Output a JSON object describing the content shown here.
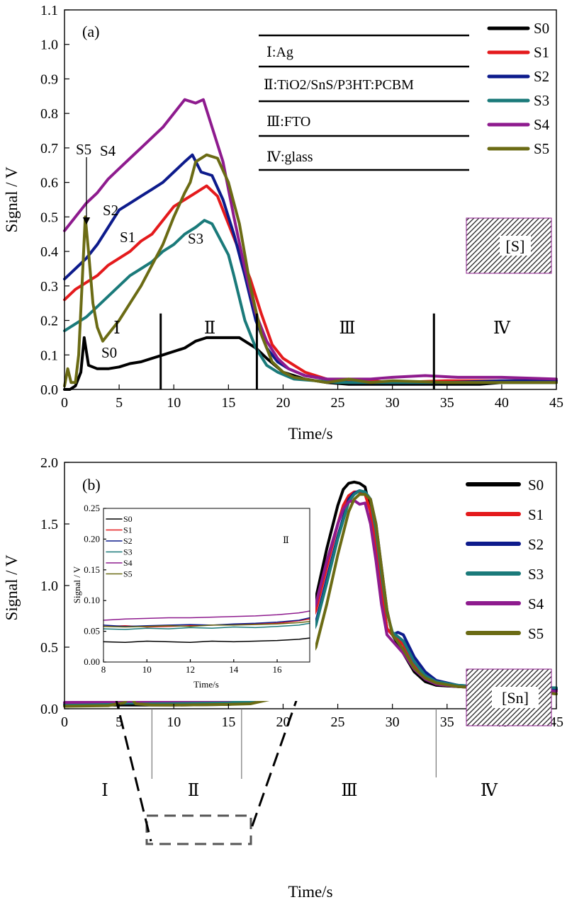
{
  "colors": {
    "S0": "#000000",
    "S1": "#e41a1c",
    "S2": "#0d1b8c",
    "S3": "#1a7a7a",
    "S4": "#8e1b8e",
    "S5": "#6b6b14"
  },
  "chart_data": [
    {
      "type": "line",
      "panel_label": "(a)",
      "xlabel": "Time/s",
      "ylabel": "Signal / V",
      "xlim": [
        0,
        45
      ],
      "ylim": [
        0,
        1.1
      ],
      "x_ticks": [
        "0",
        "5",
        "10",
        "15",
        "20",
        "25",
        "30",
        "35",
        "40",
        "45"
      ],
      "y_ticks": [
        "0.0",
        "0.1",
        "0.2",
        "0.3",
        "0.4",
        "0.5",
        "0.6",
        "0.7",
        "0.8",
        "0.9",
        "1.0",
        "1.1"
      ],
      "legend": [
        "S0",
        "S1",
        "S2",
        "S3",
        "S4",
        "S5"
      ],
      "legend_position": "top-right",
      "layers": [
        "Ⅰ:Ag",
        "Ⅱ:TiO2/SnS/P3HT:PCBM",
        "Ⅲ:FTO",
        "Ⅳ:glass"
      ],
      "element_box": "[S]",
      "region_labels": [
        "Ⅰ",
        "Ⅱ",
        "Ⅲ",
        "Ⅳ"
      ],
      "region_boundaries": [
        8.8,
        17.6,
        33.8
      ],
      "curve_labels": [
        "S5",
        "S4",
        "S2",
        "S1",
        "S3",
        "S0"
      ],
      "series": [
        {
          "name": "S0",
          "x": [
            0,
            0.5,
            1.0,
            1.5,
            1.8,
            2.2,
            3,
            4,
            5,
            6,
            7,
            8,
            9,
            10,
            11,
            12,
            13,
            14,
            15,
            16,
            16.5,
            17.5,
            18.5,
            20,
            22,
            24,
            26,
            28,
            30,
            32,
            35,
            38,
            40,
            45
          ],
          "y": [
            0.0,
            0.0,
            0.01,
            0.05,
            0.15,
            0.07,
            0.06,
            0.06,
            0.065,
            0.075,
            0.08,
            0.09,
            0.1,
            0.11,
            0.12,
            0.14,
            0.15,
            0.15,
            0.15,
            0.15,
            0.14,
            0.12,
            0.09,
            0.05,
            0.03,
            0.02,
            0.015,
            0.015,
            0.015,
            0.015,
            0.015,
            0.015,
            0.02,
            0.02
          ]
        },
        {
          "name": "S1",
          "x": [
            0,
            1,
            2,
            3,
            4,
            5,
            6,
            7,
            8,
            9,
            10,
            11,
            12,
            13,
            14,
            15,
            16,
            17,
            18,
            19,
            20,
            21,
            22,
            24,
            26,
            28,
            30,
            35,
            40,
            45
          ],
          "y": [
            0.26,
            0.29,
            0.31,
            0.33,
            0.36,
            0.38,
            0.4,
            0.43,
            0.45,
            0.49,
            0.53,
            0.55,
            0.57,
            0.59,
            0.56,
            0.48,
            0.4,
            0.32,
            0.22,
            0.13,
            0.09,
            0.07,
            0.05,
            0.03,
            0.025,
            0.025,
            0.02,
            0.025,
            0.025,
            0.025
          ]
        },
        {
          "name": "S2",
          "x": [
            0,
            1,
            2,
            3,
            4,
            5,
            6,
            7,
            8,
            9,
            10,
            11,
            11.7,
            12.5,
            13.5,
            14.5,
            15.5,
            16.5,
            17.5,
            18.5,
            19.5,
            20.5,
            22,
            24,
            26,
            28,
            30,
            35,
            40,
            45
          ],
          "y": [
            0.32,
            0.35,
            0.38,
            0.42,
            0.47,
            0.52,
            0.54,
            0.56,
            0.58,
            0.6,
            0.63,
            0.66,
            0.68,
            0.63,
            0.62,
            0.55,
            0.45,
            0.33,
            0.2,
            0.12,
            0.08,
            0.06,
            0.04,
            0.03,
            0.02,
            0.02,
            0.02,
            0.02,
            0.025,
            0.025
          ]
        },
        {
          "name": "S3",
          "x": [
            0,
            1,
            2,
            3,
            4,
            5,
            6,
            7,
            8,
            9,
            10,
            11,
            12,
            12.8,
            13.5,
            14,
            15,
            15.5,
            16.5,
            17.5,
            18.5,
            19.5,
            21,
            23,
            25,
            28,
            30,
            35,
            40,
            45
          ],
          "y": [
            0.17,
            0.19,
            0.21,
            0.24,
            0.27,
            0.3,
            0.33,
            0.35,
            0.37,
            0.4,
            0.42,
            0.45,
            0.47,
            0.49,
            0.48,
            0.45,
            0.39,
            0.33,
            0.2,
            0.12,
            0.07,
            0.05,
            0.03,
            0.025,
            0.02,
            0.02,
            0.02,
            0.02,
            0.02,
            0.02
          ]
        },
        {
          "name": "S4",
          "x": [
            0,
            1,
            2,
            3,
            4,
            5,
            6,
            7,
            8,
            9,
            10,
            11,
            12,
            12.7,
            13.5,
            14.5,
            15.5,
            16.5,
            17.5,
            18.5,
            19.5,
            20.5,
            22,
            24,
            26,
            28,
            30,
            33,
            36,
            40,
            45
          ],
          "y": [
            0.46,
            0.5,
            0.54,
            0.57,
            0.61,
            0.64,
            0.67,
            0.7,
            0.73,
            0.76,
            0.8,
            0.84,
            0.83,
            0.84,
            0.76,
            0.66,
            0.5,
            0.35,
            0.22,
            0.14,
            0.09,
            0.06,
            0.04,
            0.03,
            0.03,
            0.03,
            0.035,
            0.04,
            0.035,
            0.035,
            0.03
          ]
        },
        {
          "name": "S5",
          "x": [
            0,
            0.3,
            0.6,
            1,
            1.3,
            1.6,
            1.9,
            2.2,
            2.6,
            3,
            3.5,
            4,
            5,
            6,
            7,
            8,
            9,
            10,
            11,
            11.5,
            12,
            13,
            14,
            15,
            16,
            17,
            18,
            19,
            20,
            21,
            22,
            24,
            26,
            28,
            30,
            35,
            40,
            45
          ],
          "y": [
            0.01,
            0.06,
            0.02,
            0.02,
            0.1,
            0.3,
            0.5,
            0.4,
            0.25,
            0.18,
            0.14,
            0.16,
            0.2,
            0.25,
            0.3,
            0.36,
            0.42,
            0.5,
            0.57,
            0.6,
            0.66,
            0.68,
            0.67,
            0.6,
            0.48,
            0.3,
            0.16,
            0.08,
            0.05,
            0.035,
            0.03,
            0.02,
            0.03,
            0.02,
            0.025,
            0.02,
            0.02,
            0.02
          ]
        }
      ]
    },
    {
      "type": "line",
      "panel_label": "(b)",
      "xlabel": "Time/s",
      "ylabel": "Signal / V",
      "xlim": [
        0,
        45
      ],
      "ylim": [
        0,
        2.0
      ],
      "x_ticks": [
        "0",
        "5",
        "10",
        "15",
        "20",
        "25",
        "30",
        "35",
        "40",
        "45"
      ],
      "y_ticks": [
        "0.0",
        "0.5",
        "1.0",
        "1.5",
        "2.0"
      ],
      "legend": [
        "S0",
        "S1",
        "S2",
        "S3",
        "S4",
        "S5"
      ],
      "legend_position": "top-right",
      "element_box": "[Sn]",
      "region_labels": [
        "Ⅰ",
        "Ⅱ",
        "Ⅲ",
        "Ⅳ"
      ],
      "region_boundaries": [
        8,
        16.2,
        34
      ],
      "series": [
        {
          "name": "S0",
          "x": [
            0,
            5,
            10,
            15,
            17,
            19,
            21,
            23,
            24,
            25,
            25.5,
            26,
            26.5,
            27,
            27.5,
            28,
            28.5,
            29,
            29.5,
            30,
            31,
            32,
            33,
            34,
            36,
            38,
            40,
            42,
            44,
            45
          ],
          "y": [
            0.03,
            0.03,
            0.03,
            0.035,
            0.05,
            0.15,
            0.4,
            0.9,
            1.3,
            1.65,
            1.78,
            1.83,
            1.84,
            1.83,
            1.8,
            1.6,
            1.3,
            0.95,
            0.65,
            0.6,
            0.45,
            0.3,
            0.22,
            0.19,
            0.18,
            0.17,
            0.17,
            0.17,
            0.16,
            0.16
          ]
        },
        {
          "name": "S1",
          "x": [
            0,
            5,
            10,
            15,
            17,
            19,
            21,
            23,
            24,
            25,
            25.5,
            26,
            26.5,
            27,
            27.5,
            28,
            28.5,
            29,
            29.5,
            30,
            31,
            32,
            33,
            34,
            36,
            38,
            40,
            42,
            44,
            45
          ],
          "y": [
            0.04,
            0.045,
            0.05,
            0.055,
            0.07,
            0.17,
            0.38,
            0.8,
            1.15,
            1.5,
            1.65,
            1.73,
            1.76,
            1.76,
            1.74,
            1.6,
            1.3,
            0.95,
            0.65,
            0.6,
            0.52,
            0.35,
            0.25,
            0.2,
            0.18,
            0.17,
            0.17,
            0.17,
            0.16,
            0.15
          ]
        },
        {
          "name": "S2",
          "x": [
            0,
            5,
            10,
            15,
            17,
            19,
            21,
            23,
            24,
            25,
            26,
            26.5,
            27,
            27.5,
            28,
            28.5,
            29,
            29.5,
            30,
            30.5,
            31,
            32,
            33,
            34,
            36,
            38,
            40,
            42,
            44,
            45
          ],
          "y": [
            0.05,
            0.05,
            0.055,
            0.06,
            0.07,
            0.14,
            0.32,
            0.7,
            1.05,
            1.4,
            1.7,
            1.75,
            1.77,
            1.76,
            1.7,
            1.5,
            1.15,
            0.8,
            0.6,
            0.62,
            0.6,
            0.42,
            0.3,
            0.23,
            0.19,
            0.18,
            0.17,
            0.17,
            0.17,
            0.16
          ]
        },
        {
          "name": "S3",
          "x": [
            0,
            5,
            10,
            15,
            17,
            19,
            21,
            23,
            24,
            25,
            26,
            26.5,
            27,
            27.5,
            28,
            28.5,
            29,
            29.5,
            30,
            31,
            32,
            33,
            34,
            36,
            38,
            40,
            42,
            44,
            45
          ],
          "y": [
            0.04,
            0.045,
            0.05,
            0.055,
            0.06,
            0.12,
            0.3,
            0.68,
            1.02,
            1.38,
            1.68,
            1.74,
            1.77,
            1.76,
            1.7,
            1.45,
            1.1,
            0.78,
            0.62,
            0.55,
            0.38,
            0.27,
            0.22,
            0.19,
            0.18,
            0.17,
            0.17,
            0.17,
            0.17
          ]
        },
        {
          "name": "S4",
          "x": [
            0,
            5,
            10,
            15,
            17,
            19,
            21,
            23,
            24,
            25,
            25.5,
            26,
            26.5,
            27,
            27.5,
            28,
            28.5,
            29,
            29.5,
            30,
            31,
            32,
            33,
            34,
            36,
            38,
            40,
            42,
            44,
            45
          ],
          "y": [
            0.05,
            0.06,
            0.065,
            0.07,
            0.09,
            0.2,
            0.45,
            0.85,
            1.2,
            1.5,
            1.62,
            1.68,
            1.69,
            1.66,
            1.67,
            1.5,
            1.2,
            0.85,
            0.6,
            0.55,
            0.45,
            0.32,
            0.24,
            0.2,
            0.18,
            0.17,
            0.17,
            0.17,
            0.15,
            0.14
          ]
        },
        {
          "name": "S5",
          "x": [
            0,
            4,
            5.5,
            6,
            6.5,
            8,
            10,
            15,
            17,
            19,
            21,
            23,
            24,
            25,
            26,
            26.5,
            27,
            27.5,
            28,
            28.5,
            29,
            29.5,
            30,
            31,
            32,
            33,
            34,
            36,
            38,
            40,
            42,
            44,
            45
          ],
          "y": [
            0.02,
            0.025,
            0.05,
            0.11,
            0.04,
            0.03,
            0.03,
            0.035,
            0.04,
            0.08,
            0.2,
            0.5,
            0.85,
            1.25,
            1.6,
            1.7,
            1.74,
            1.74,
            1.7,
            1.5,
            1.15,
            0.8,
            0.6,
            0.48,
            0.33,
            0.25,
            0.21,
            0.18,
            0.17,
            0.17,
            0.18,
            0.13,
            0.12
          ]
        }
      ]
    },
    {
      "type": "line",
      "panel_label": "inset",
      "region_label": "Ⅱ",
      "xlabel": "Time/s",
      "ylabel": "Signal / V",
      "xlim": [
        8,
        17.5
      ],
      "ylim": [
        0,
        0.25
      ],
      "x_ticks": [
        "8",
        "10",
        "12",
        "14",
        "16"
      ],
      "y_ticks": [
        "0.00",
        "0.05",
        "0.10",
        "0.15",
        "0.20",
        "0.25"
      ],
      "legend": [
        "S0",
        "S1",
        "S2",
        "S3",
        "S4",
        "S5"
      ],
      "legend_position": "top-left",
      "series": [
        {
          "name": "S0",
          "x": [
            8,
            9,
            10,
            11,
            12,
            13,
            14,
            15,
            16,
            17,
            17.5
          ],
          "y": [
            0.033,
            0.032,
            0.034,
            0.033,
            0.032,
            0.034,
            0.033,
            0.034,
            0.035,
            0.037,
            0.039
          ]
        },
        {
          "name": "S1",
          "x": [
            8,
            9,
            10,
            11,
            12,
            13,
            14,
            15,
            16,
            17,
            17.5
          ],
          "y": [
            0.058,
            0.059,
            0.057,
            0.058,
            0.059,
            0.06,
            0.061,
            0.062,
            0.063,
            0.067,
            0.07
          ]
        },
        {
          "name": "S2",
          "x": [
            8,
            9,
            10,
            11,
            12,
            13,
            14,
            15,
            16,
            17,
            17.5
          ],
          "y": [
            0.06,
            0.058,
            0.059,
            0.06,
            0.061,
            0.06,
            0.062,
            0.063,
            0.065,
            0.068,
            0.072
          ]
        },
        {
          "name": "S3",
          "x": [
            8,
            9,
            10,
            11,
            12,
            13,
            14,
            15,
            16,
            17,
            17.5
          ],
          "y": [
            0.054,
            0.053,
            0.055,
            0.054,
            0.056,
            0.055,
            0.057,
            0.056,
            0.058,
            0.06,
            0.063
          ]
        },
        {
          "name": "S4",
          "x": [
            8,
            9,
            10,
            11,
            12,
            13,
            14,
            15,
            16,
            17,
            17.5
          ],
          "y": [
            0.068,
            0.07,
            0.071,
            0.072,
            0.072,
            0.073,
            0.074,
            0.075,
            0.077,
            0.08,
            0.083
          ]
        },
        {
          "name": "S5",
          "x": [
            8,
            9,
            10,
            11,
            12,
            13,
            14,
            15,
            16,
            17,
            17.5
          ],
          "y": [
            0.058,
            0.057,
            0.058,
            0.059,
            0.058,
            0.06,
            0.06,
            0.061,
            0.062,
            0.064,
            0.066
          ]
        }
      ]
    }
  ]
}
